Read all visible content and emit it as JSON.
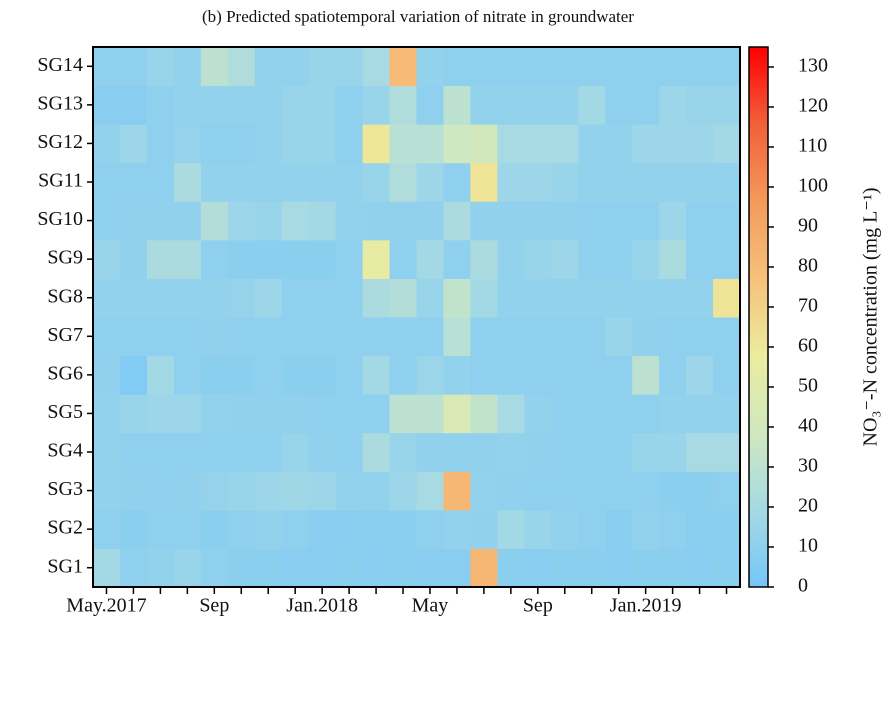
{
  "chart_data": {
    "type": "heatmap",
    "title": "(b) Predicted spatiotemporal variation of nitrate in groundwater",
    "x": [
      "May.2017",
      null,
      null,
      null,
      "Sep",
      null,
      null,
      null,
      "Jan.2018",
      null,
      null,
      null,
      "May",
      null,
      null,
      null,
      "Sep",
      null,
      null,
      null,
      "Jan.2019",
      null,
      null,
      null
    ],
    "y": [
      "SG1",
      "SG2",
      "SG3",
      "SG4",
      "SG5",
      "SG6",
      "SG7",
      "SG8",
      "SG9",
      "SG10",
      "SG11",
      "SG12",
      "SG13",
      "SG14"
    ],
    "z": [
      [
        18,
        10,
        12,
        14,
        10,
        9,
        9,
        8,
        8,
        9,
        8,
        9,
        8,
        8,
        82,
        9,
        8,
        9,
        9,
        8,
        9,
        9,
        8,
        9
      ],
      [
        10,
        9,
        10,
        10,
        9,
        10,
        12,
        10,
        8,
        8,
        9,
        9,
        10,
        12,
        11,
        18,
        14,
        12,
        10,
        8,
        12,
        10,
        9,
        9
      ],
      [
        12,
        11,
        10,
        11,
        13,
        14,
        16,
        17,
        16,
        12,
        12,
        16,
        20,
        82,
        12,
        11,
        10,
        10,
        10,
        10,
        10,
        9,
        9,
        10
      ],
      [
        12,
        10,
        10,
        10,
        10,
        10,
        10,
        14,
        11,
        10,
        22,
        14,
        11,
        11,
        11,
        12,
        11,
        10,
        10,
        10,
        14,
        14,
        20,
        20
      ],
      [
        12,
        14,
        16,
        16,
        12,
        11,
        11,
        11,
        10,
        10,
        10,
        30,
        30,
        45,
        32,
        20,
        12,
        10,
        10,
        10,
        10,
        12,
        12,
        12
      ],
      [
        11,
        5,
        18,
        10,
        9,
        9,
        10,
        9,
        9,
        10,
        18,
        10,
        15,
        12,
        10,
        10,
        10,
        10,
        10,
        10,
        30,
        10,
        16,
        10
      ],
      [
        10,
        10,
        10,
        10,
        11,
        10,
        10,
        10,
        10,
        10,
        10,
        10,
        10,
        28,
        10,
        10,
        10,
        10,
        10,
        14,
        11,
        10,
        10,
        10
      ],
      [
        12,
        12,
        12,
        12,
        12,
        13,
        16,
        10,
        10,
        10,
        22,
        25,
        14,
        32,
        18,
        12,
        12,
        12,
        12,
        12,
        12,
        12,
        12,
        62
      ],
      [
        14,
        11,
        22,
        22,
        10,
        9,
        9,
        9,
        9,
        10,
        55,
        10,
        18,
        10,
        22,
        12,
        14,
        16,
        10,
        10,
        14,
        22,
        10,
        10
      ],
      [
        10,
        11,
        11,
        11,
        25,
        16,
        14,
        20,
        18,
        12,
        11,
        11,
        11,
        22,
        11,
        11,
        11,
        11,
        10,
        10,
        10,
        16,
        10,
        10
      ],
      [
        10,
        10,
        10,
        22,
        12,
        12,
        12,
        12,
        12,
        12,
        14,
        24,
        16,
        10,
        62,
        16,
        16,
        14,
        12,
        12,
        12,
        12,
        12,
        12
      ],
      [
        12,
        16,
        10,
        13,
        10,
        10,
        12,
        14,
        14,
        10,
        60,
        28,
        28,
        38,
        40,
        20,
        20,
        20,
        12,
        12,
        16,
        16,
        16,
        18
      ],
      [
        8,
        8,
        10,
        12,
        12,
        12,
        12,
        14,
        14,
        10,
        14,
        24,
        10,
        30,
        12,
        12,
        12,
        12,
        18,
        10,
        10,
        16,
        14,
        14
      ],
      [
        10,
        10,
        14,
        12,
        30,
        24,
        12,
        12,
        14,
        14,
        20,
        80,
        12,
        10,
        10,
        10,
        10,
        10,
        10,
        10,
        10,
        10,
        10,
        10
      ]
    ],
    "zlim": [
      0,
      135
    ],
    "zticks": [
      0,
      10,
      20,
      30,
      40,
      50,
      60,
      70,
      80,
      90,
      100,
      110,
      120,
      130
    ],
    "colors": [
      "#74c6f9",
      "#a6d9e4",
      "#cfe8c0",
      "#ecec9e",
      "#f6c17b",
      "#f49a5a",
      "#f2603a",
      "#ff0000"
    ],
    "colorbar_label": "NO₃⁻-N concentration (mg L⁻¹)"
  }
}
